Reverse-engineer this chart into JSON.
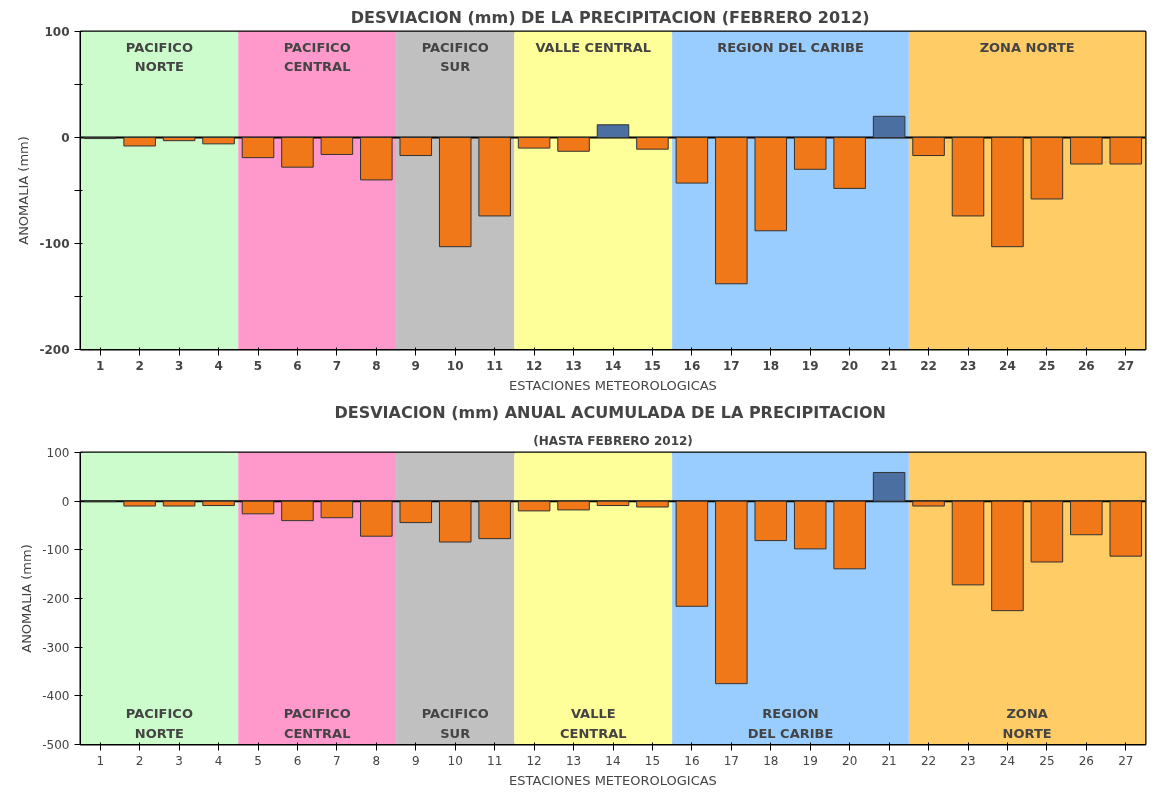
{
  "chart_data": [
    {
      "type": "bar",
      "title": "DESVIACION (mm)  DE LA PRECIPITACION (FEBRERO 2012)",
      "xlabel": "ESTACIONES METEOROLOGICAS",
      "ylabel": "ANOMALIA (mm)",
      "x": [
        1,
        2,
        3,
        4,
        5,
        6,
        7,
        8,
        9,
        10,
        11,
        12,
        13,
        14,
        15,
        16,
        17,
        18,
        19,
        20,
        21,
        22,
        23,
        24,
        25,
        26,
        27
      ],
      "values": [
        -1,
        -8,
        -3,
        -6,
        -19,
        -28,
        -16,
        -40,
        -17,
        -103,
        -74,
        -10,
        -13,
        12,
        -11,
        -43,
        -138,
        -88,
        -30,
        -48,
        20,
        -17,
        -74,
        -103,
        -58,
        -25,
        -25
      ],
      "colors": [
        "#f07818",
        "#f07818",
        "#f07818",
        "#f07818",
        "#f07818",
        "#f07818",
        "#f07818",
        "#f07818",
        "#f07818",
        "#f07818",
        "#f07818",
        "#f07818",
        "#f07818",
        "#4a6fa0",
        "#f07818",
        "#f07818",
        "#f07818",
        "#f07818",
        "#f07818",
        "#f07818",
        "#4a6fa0",
        "#f07818",
        "#f07818",
        "#f07818",
        "#f07818",
        "#f07818",
        "#f07818"
      ],
      "xlim": [
        0.5,
        27.5
      ],
      "xticks": [
        1,
        2,
        3,
        4,
        5,
        6,
        7,
        8,
        9,
        10,
        11,
        12,
        13,
        14,
        15,
        16,
        17,
        18,
        19,
        20,
        21,
        22,
        23,
        24,
        25,
        26,
        27
      ],
      "ylim": [
        -200,
        100
      ],
      "yticks": [
        -200,
        {
          "value": -150,
          "label": null
        },
        -100,
        {
          "value": -50,
          "label": null
        },
        0,
        {
          "value": 50,
          "label": null
        },
        100
      ],
      "grid": false,
      "ref_lines": [
        {
          "axis": "y",
          "value": 0,
          "color": "#000000"
        }
      ],
      "bands": [
        {
          "axis": "x",
          "from": 0.5,
          "to": 4.5,
          "label": "PACIFICO\nNORTE",
          "color": "#ccfccc"
        },
        {
          "axis": "x",
          "from": 4.5,
          "to": 8.5,
          "label": "PACIFICO\nCENTRAL",
          "color": "#ff99cc"
        },
        {
          "axis": "x",
          "from": 8.5,
          "to": 11.5,
          "label": "PACIFICO\nSUR",
          "color": "#c0c0c0"
        },
        {
          "axis": "x",
          "from": 11.5,
          "to": 15.5,
          "label": "VALLE CENTRAL",
          "color": "#ffff99"
        },
        {
          "axis": "x",
          "from": 15.5,
          "to": 21.5,
          "label": "REGION DEL CARIBE",
          "color": "#99ccff"
        },
        {
          "axis": "x",
          "from": 21.5,
          "to": 27.5,
          "label": "ZONA NORTE",
          "color": "#ffcc66"
        }
      ]
    },
    {
      "type": "bar",
      "title": "DESVIACION (mm)  ANUAL ACUMULADA DE LA PRECIPITACION",
      "subtitle": "(HASTA FEBRERO 2012)",
      "xlabel": "ESTACIONES METEOROLOGICAS",
      "ylabel": "ANOMALIA (mm)",
      "x": [
        1,
        2,
        3,
        4,
        5,
        6,
        7,
        8,
        9,
        10,
        11,
        12,
        13,
        14,
        15,
        16,
        17,
        18,
        19,
        20,
        21,
        22,
        23,
        24,
        25,
        26,
        27
      ],
      "values": [
        -1,
        -10,
        -10,
        -9,
        -26,
        -40,
        -34,
        -72,
        -44,
        -84,
        -77,
        -20,
        -18,
        -9,
        -12,
        -216,
        -375,
        -81,
        -98,
        -139,
        59,
        -10,
        -172,
        -225,
        -125,
        -69,
        -113
      ],
      "colors": [
        "#f07818",
        "#f07818",
        "#f07818",
        "#f07818",
        "#f07818",
        "#f07818",
        "#f07818",
        "#f07818",
        "#f07818",
        "#f07818",
        "#f07818",
        "#f07818",
        "#f07818",
        "#f07818",
        "#f07818",
        "#f07818",
        "#f07818",
        "#f07818",
        "#f07818",
        "#f07818",
        "#4a6fa0",
        "#f07818",
        "#f07818",
        "#f07818",
        "#f07818",
        "#f07818",
        "#f07818"
      ],
      "xlim": [
        0.5,
        27.5
      ],
      "xticks": [
        1,
        2,
        3,
        4,
        5,
        6,
        7,
        8,
        9,
        10,
        11,
        12,
        13,
        14,
        15,
        16,
        17,
        18,
        19,
        20,
        21,
        22,
        23,
        24,
        25,
        26,
        27
      ],
      "ylim": [
        -500,
        100
      ],
      "yticks": [
        -500,
        -400,
        -300,
        -200,
        -100,
        0,
        100
      ],
      "grid": false,
      "ref_lines": [
        {
          "axis": "y",
          "value": 0,
          "color": "#000000"
        }
      ],
      "bands": [
        {
          "axis": "x",
          "from": 0.5,
          "to": 4.5,
          "label": "PACIFICO\nNORTE",
          "color": "#ccfccc"
        },
        {
          "axis": "x",
          "from": 4.5,
          "to": 8.5,
          "label": "PACIFICO\nCENTRAL",
          "color": "#ff99cc"
        },
        {
          "axis": "x",
          "from": 8.5,
          "to": 11.5,
          "label": "PACIFICO\nSUR",
          "color": "#c0c0c0"
        },
        {
          "axis": "x",
          "from": 11.5,
          "to": 15.5,
          "label": "VALLE\nCENTRAL",
          "color": "#ffff99"
        },
        {
          "axis": "x",
          "from": 15.5,
          "to": 21.5,
          "label": "REGION\nDEL CARIBE",
          "color": "#99ccff"
        },
        {
          "axis": "x",
          "from": 21.5,
          "to": 27.5,
          "label": "ZONA\nNORTE",
          "color": "#ffcc66"
        }
      ]
    }
  ]
}
